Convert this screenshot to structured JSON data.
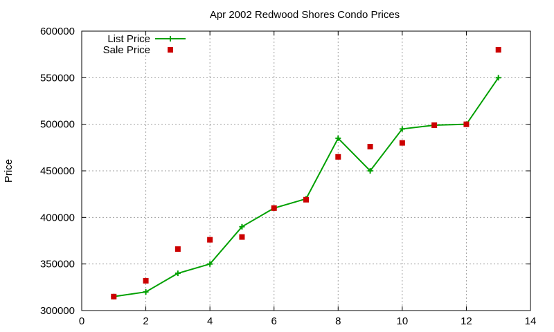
{
  "chart_data": {
    "type": "line",
    "title": "Apr 2002 Redwood Shores Condo Prices",
    "xlabel": "",
    "ylabel": "Price",
    "xlim": [
      0,
      14
    ],
    "ylim": [
      300000,
      600000
    ],
    "xticks": [
      0,
      2,
      4,
      6,
      8,
      10,
      12,
      14
    ],
    "yticks": [
      300000,
      350000,
      400000,
      450000,
      500000,
      550000,
      600000
    ],
    "grid": true,
    "legend_position": "top-left",
    "series": [
      {
        "name": "List Price",
        "style": "line-with-plus-markers",
        "color": "#00a000",
        "x": [
          1,
          2,
          3,
          4,
          5,
          6,
          7,
          8,
          9,
          10,
          11,
          12,
          13
        ],
        "y": [
          315000,
          320000,
          340000,
          350000,
          390000,
          410000,
          420000,
          485000,
          450000,
          495000,
          499000,
          500000,
          550000
        ]
      },
      {
        "name": "Sale Price",
        "style": "square-markers",
        "color": "#cc0000",
        "x": [
          1,
          2,
          3,
          4,
          5,
          6,
          7,
          8,
          9,
          10,
          11,
          12,
          13
        ],
        "y": [
          315000,
          332000,
          366000,
          376000,
          379000,
          410000,
          419000,
          465000,
          476000,
          480000,
          499000,
          500000,
          580000
        ]
      }
    ]
  }
}
